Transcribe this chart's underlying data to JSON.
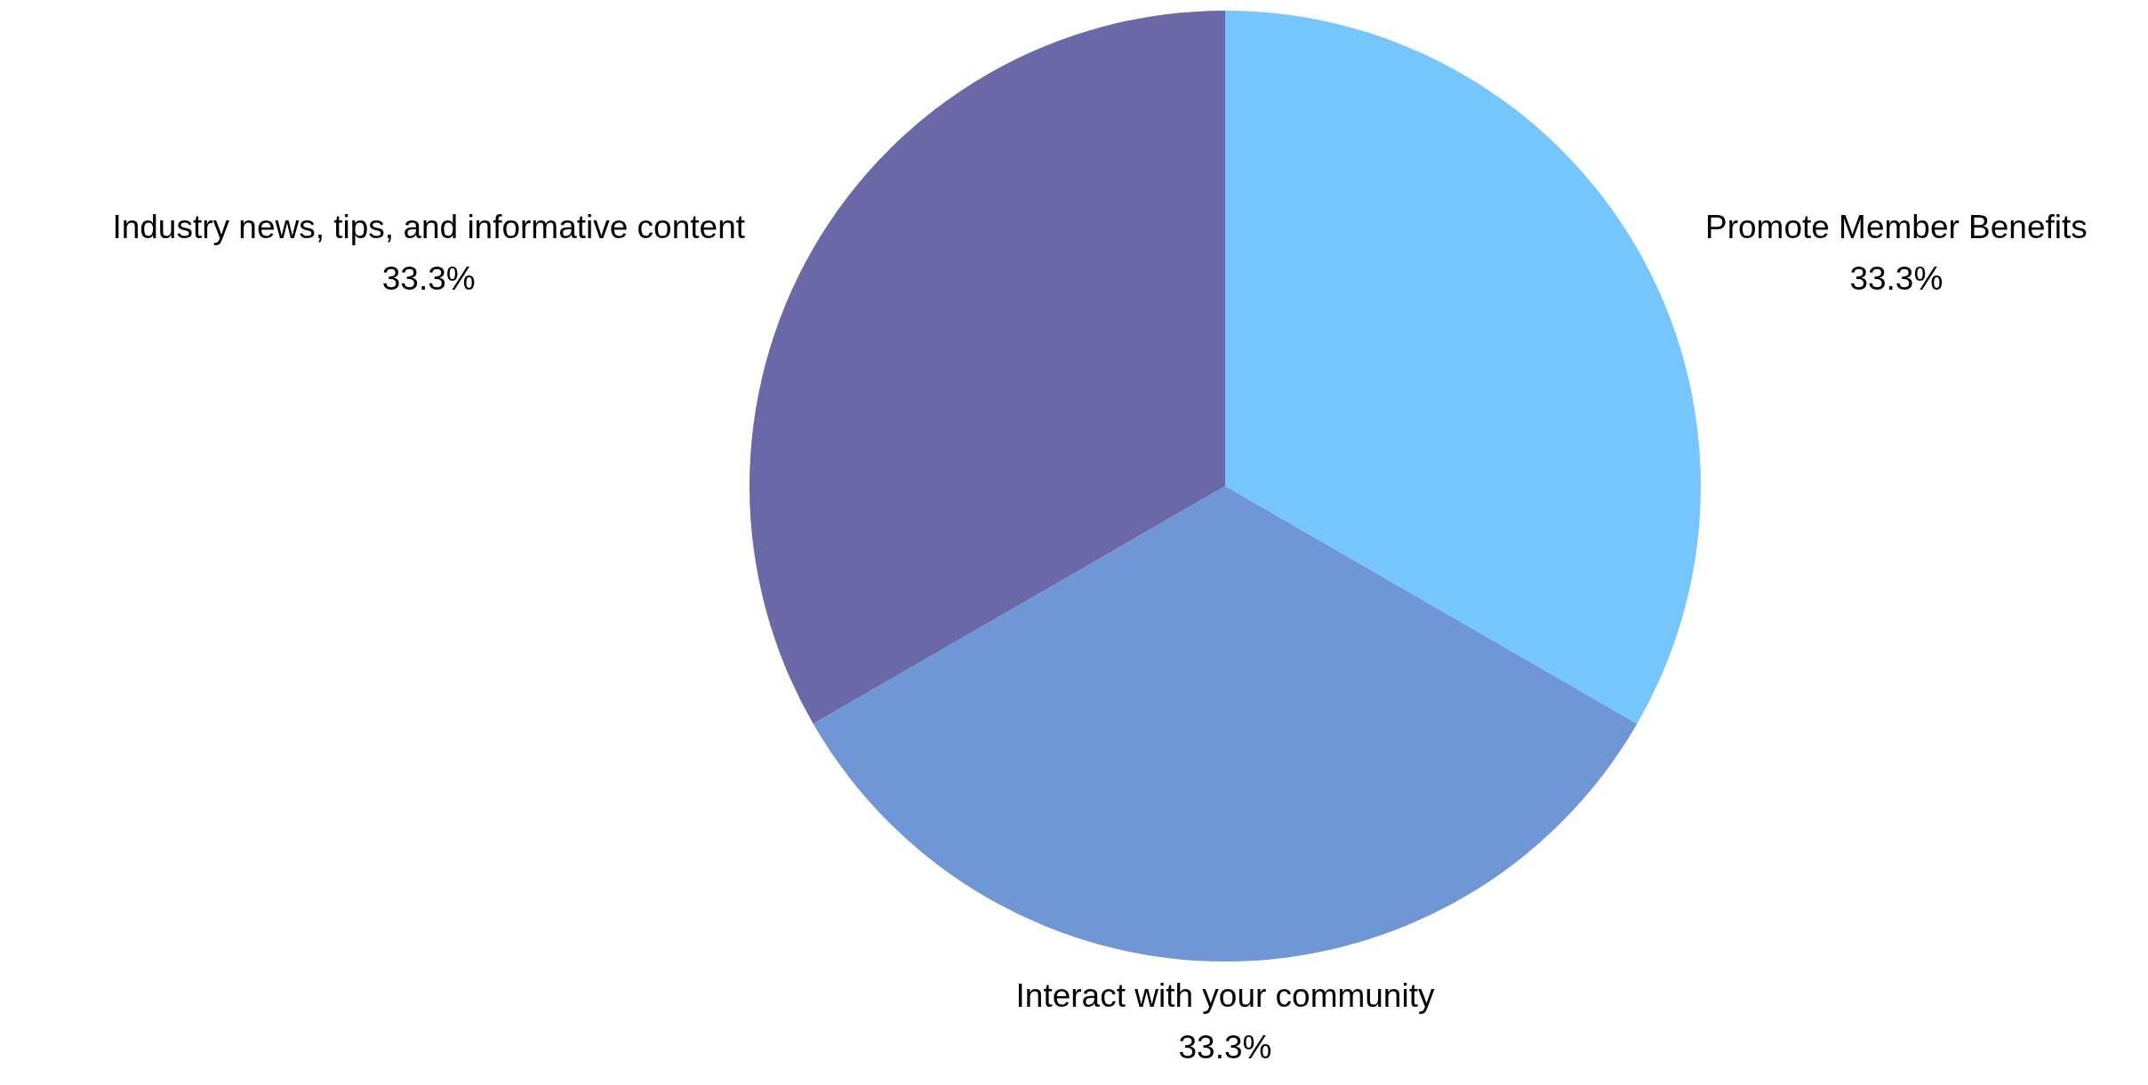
{
  "chart_data": {
    "type": "pie",
    "categories": [
      "Promote Member Benefits",
      "Interact with your community",
      "Industry news, tips, and informative content"
    ],
    "values": [
      33.3,
      33.3,
      33.3
    ],
    "value_labels": [
      "33.3%",
      "33.3%",
      "33.3%"
    ],
    "colors": [
      "#75c6fc",
      "#6f97d5",
      "#6b68a8"
    ]
  }
}
